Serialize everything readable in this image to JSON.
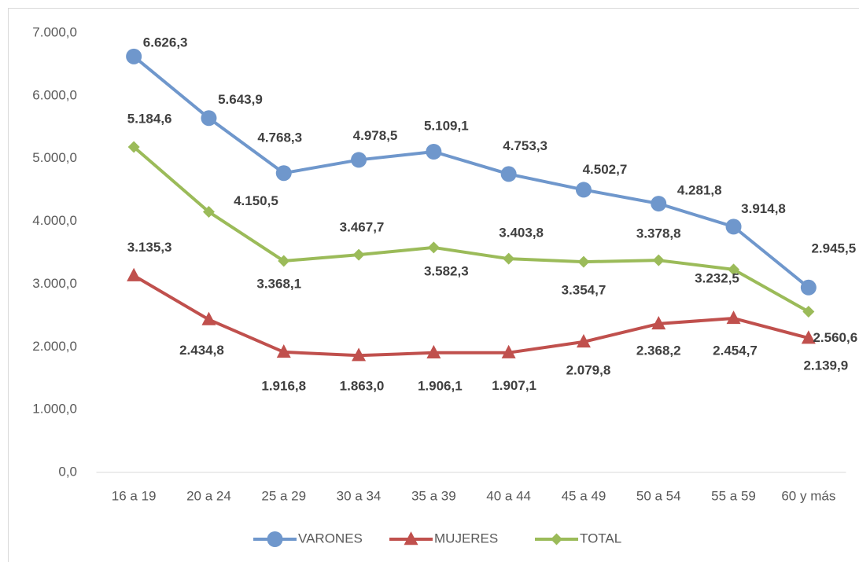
{
  "chart_data": {
    "type": "line",
    "categories": [
      "16 a 19",
      "20 a 24",
      "25 a 29",
      "30 a 34",
      "35 a 39",
      "40 a 44",
      "45 a 49",
      "50 a 54",
      "55 a 59",
      "60 y más"
    ],
    "series": [
      {
        "name": "VARONES",
        "color": "#6f97cc",
        "marker": "circle",
        "values": [
          6626.3,
          5643.9,
          4768.3,
          4978.5,
          5109.1,
          4753.3,
          4502.7,
          4281.8,
          3914.8,
          2945.5
        ],
        "value_labels": [
          "6.626,3",
          "5.643,9",
          "4.768,3",
          "4.978,5",
          "5.109,1",
          "4.753,3",
          "4.502,7",
          "4.281,8",
          "3.914,8",
          "2.945,5"
        ]
      },
      {
        "name": "MUJERES",
        "color": "#c0504d",
        "marker": "triangle",
        "values": [
          3135.3,
          2434.8,
          1916.8,
          1863.0,
          1906.1,
          1907.1,
          2079.8,
          2368.2,
          2454.7,
          2139.9
        ],
        "value_labels": [
          "3.135,3",
          "2.434,8",
          "1.916,8",
          "1.863,0",
          "1.906,1",
          "1.907,1",
          "2.079,8",
          "2.368,2",
          "2.454,7",
          "2.139,9"
        ]
      },
      {
        "name": "TOTAL",
        "color": "#9bbb59",
        "marker": "diamond",
        "values": [
          5184.6,
          4150.5,
          3368.1,
          3467.7,
          3582.3,
          3403.8,
          3354.7,
          3378.8,
          3232.5,
          2560.6
        ],
        "value_labels": [
          "5.184,6",
          "4.150,5",
          "3.368,1",
          "3.467,7",
          "3.582,3",
          "3.403,8",
          "3.354,7",
          "3.378,8",
          "3.232,5",
          "2.560,6"
        ]
      }
    ],
    "ylim": [
      0,
      7000
    ],
    "yticks": [
      {
        "value": 0,
        "label": "0,0"
      },
      {
        "value": 1000,
        "label": "1.000,0"
      },
      {
        "value": 2000,
        "label": "2.000,0"
      },
      {
        "value": 3000,
        "label": "3.000,0"
      },
      {
        "value": 4000,
        "label": "4.000,0"
      },
      {
        "value": 5000,
        "label": "5.000,0"
      },
      {
        "value": 6000,
        "label": "6.000,0"
      },
      {
        "value": 7000,
        "label": "7.000,0"
      }
    ],
    "grid": false,
    "legend": "bottom"
  }
}
